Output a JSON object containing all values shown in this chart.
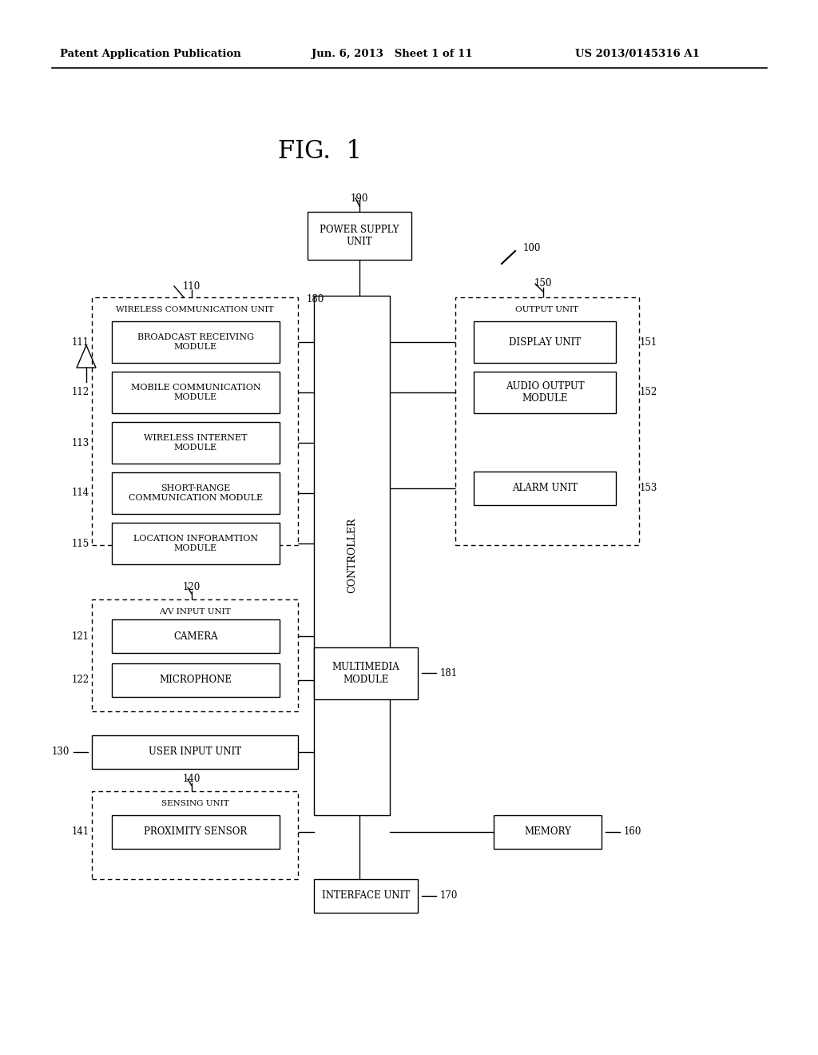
{
  "bg_color": "#ffffff",
  "fig_title": "FIG.  1",
  "header_left": "Patent Application Publication",
  "header_center": "Jun. 6, 2013   Sheet 1 of 11",
  "header_right": "US 2013/0145316 A1"
}
